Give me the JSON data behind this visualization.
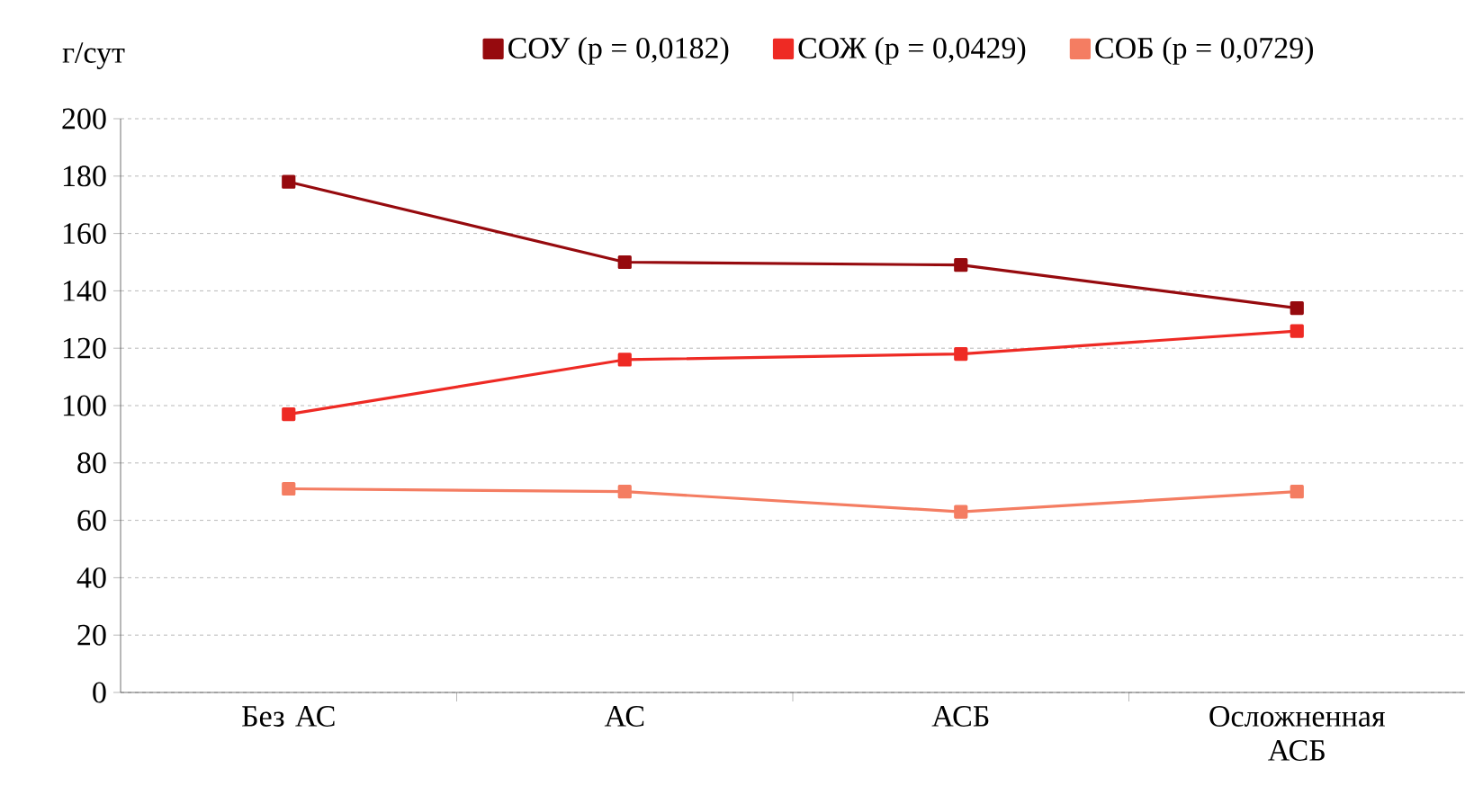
{
  "chart_data": {
    "type": "line",
    "ylabel": "г/сут",
    "categories": [
      "Без АС",
      "АС",
      "АСБ",
      "Осложненная АСБ"
    ],
    "series": [
      {
        "name": "СОУ (p = 0,0182)",
        "color": "#960a0e",
        "values": [
          178,
          150,
          149,
          134
        ]
      },
      {
        "name": "СОЖ (p = 0,0429)",
        "color": "#ee2a24",
        "values": [
          97,
          116,
          118,
          126
        ]
      },
      {
        "name": "СОБ (p = 0,0729)",
        "color": "#f47d62",
        "values": [
          71,
          70,
          63,
          70
        ]
      }
    ],
    "ylim": [
      0,
      200
    ],
    "yticks": [
      0,
      20,
      40,
      60,
      80,
      100,
      120,
      140,
      160,
      180,
      200
    ],
    "grid": "y",
    "legend": "top",
    "marker": "square",
    "line_style": "solid"
  }
}
